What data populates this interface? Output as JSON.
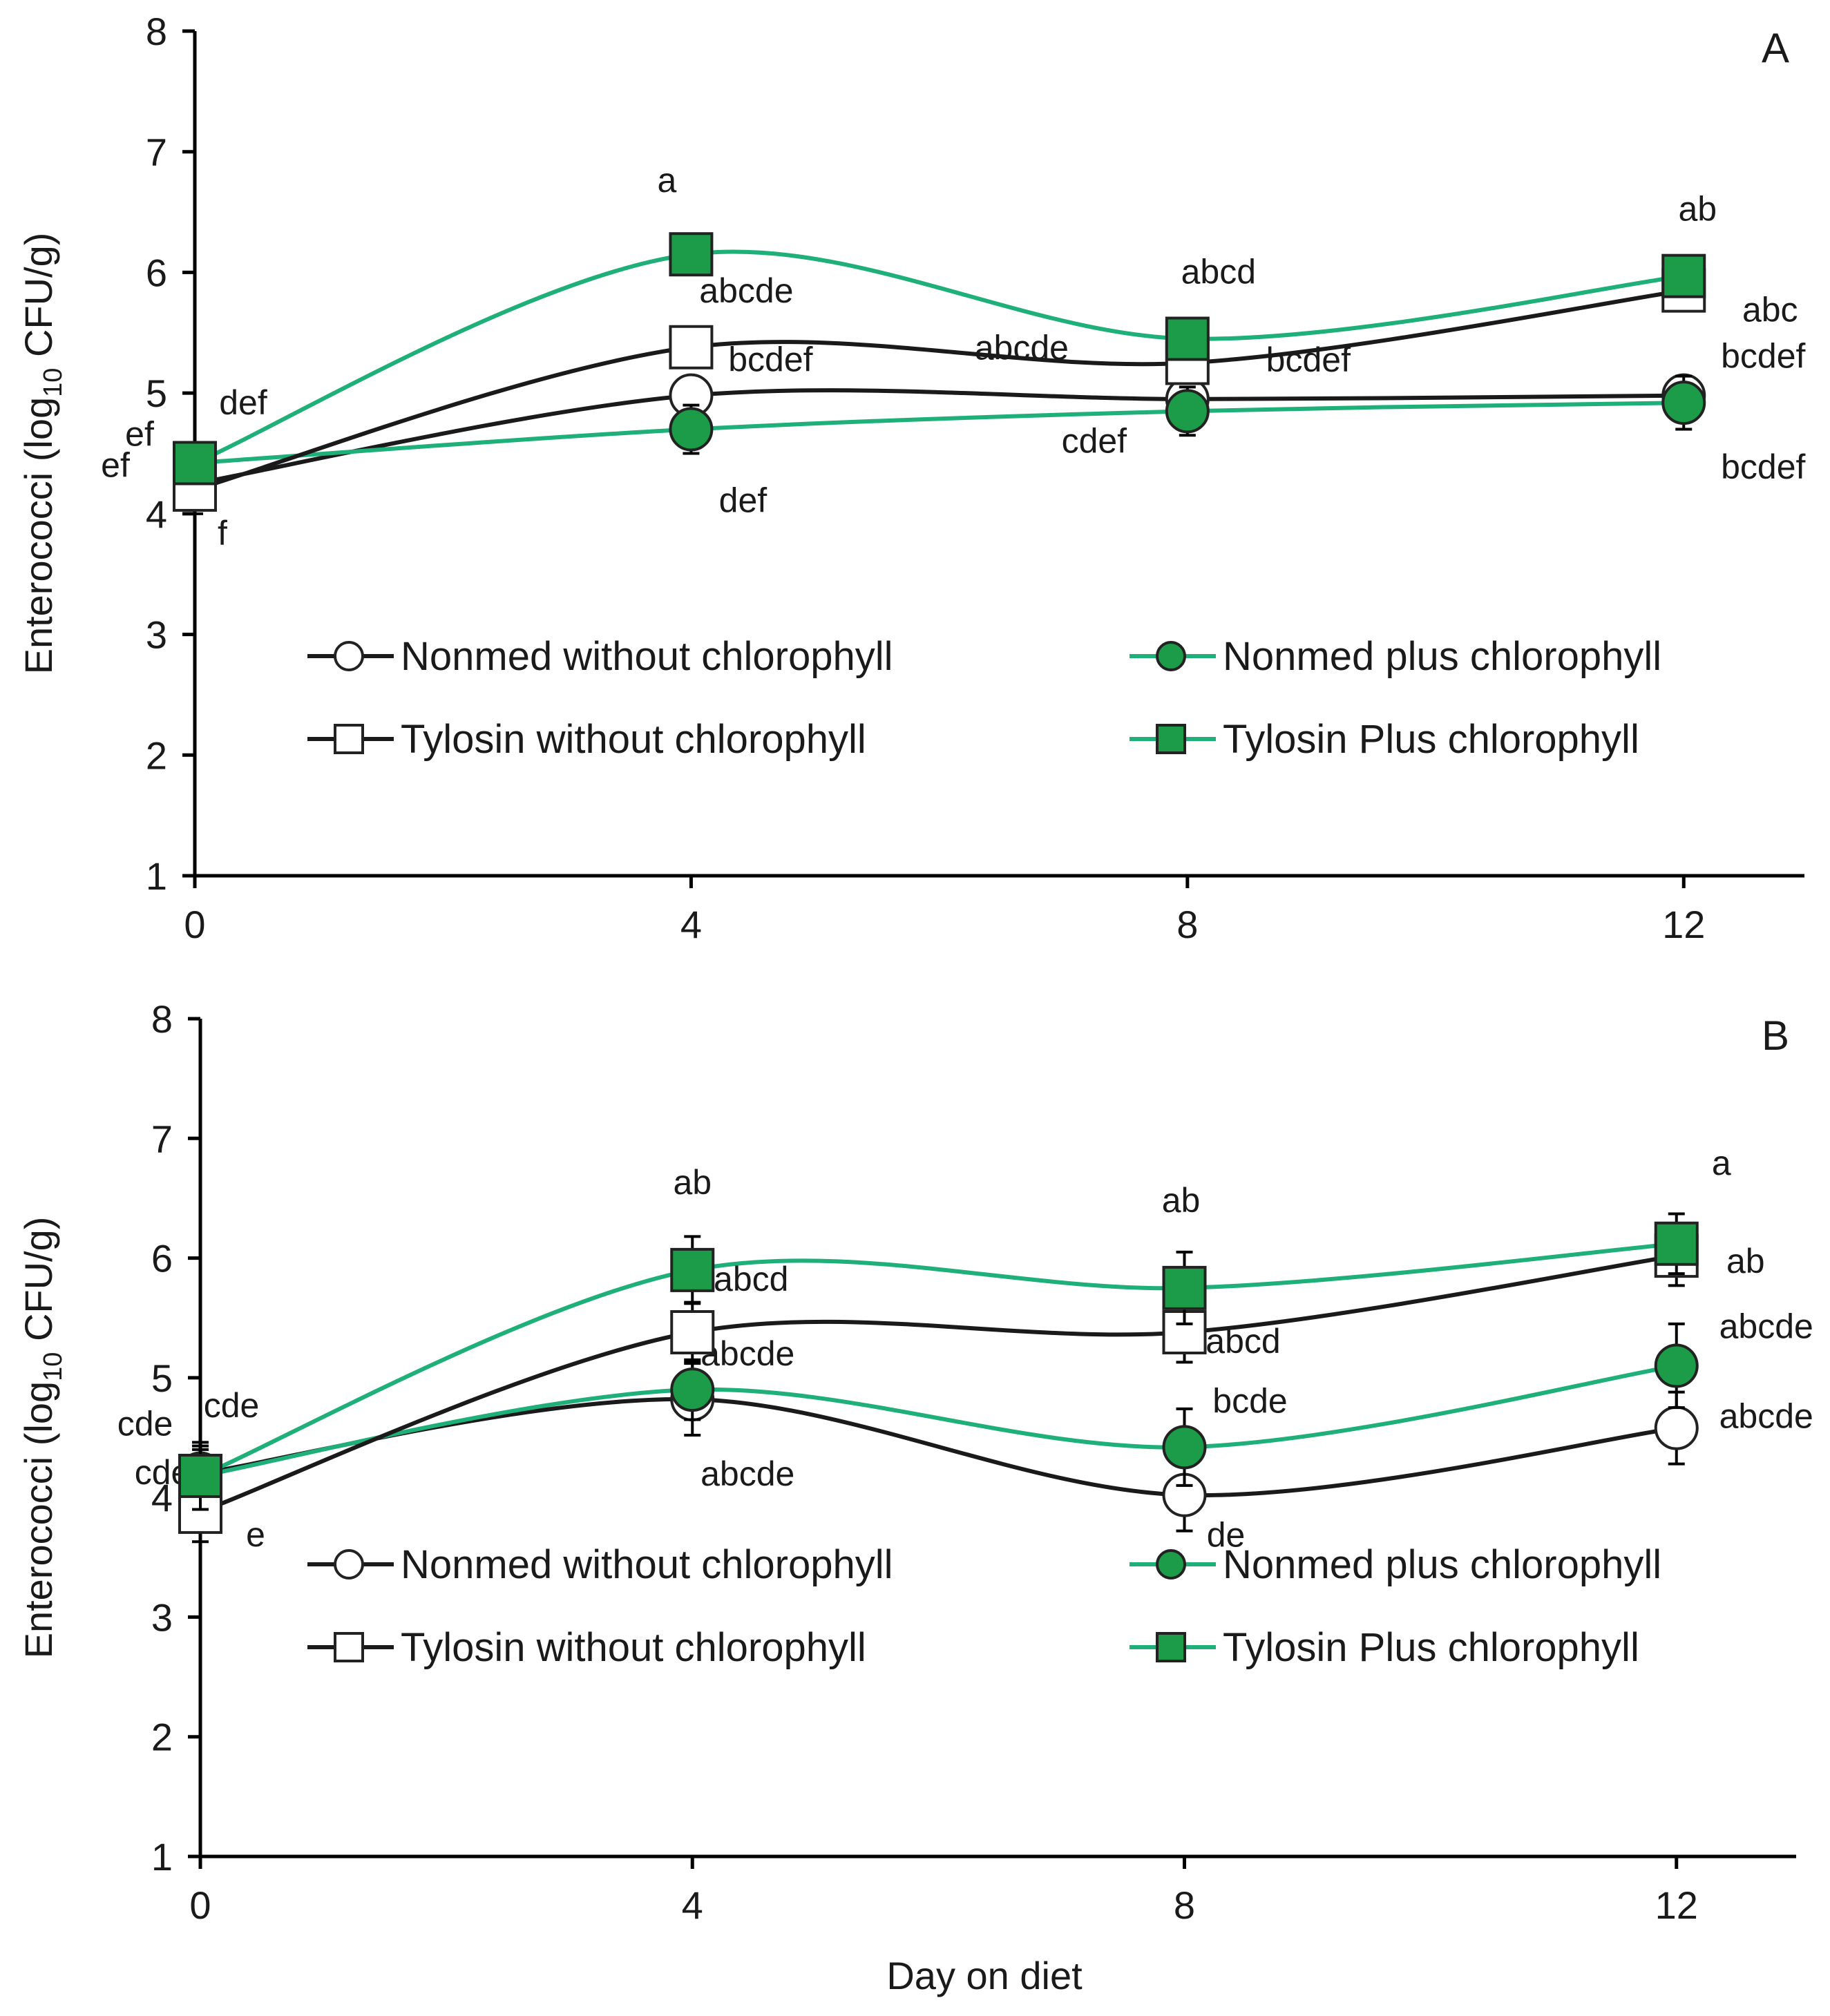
{
  "figure": {
    "xlabel": "Day on diet",
    "series_colors": {
      "Nonmed without chlorophyll": "#1a1a1a",
      "Nonmed plus chlorophyll": "#1fb07a",
      "Tylosin without chlorophyll": "#1a1a1a",
      "Tylosin Plus chlorophyll": "#1fb07a"
    },
    "marker_fill": {
      "Nonmed without chlorophyll": "#ffffff",
      "Nonmed plus chlorophyll": "#1c9c48",
      "Tylosin without chlorophyll": "#ffffff",
      "Tylosin Plus chlorophyll": "#1c9c48"
    }
  },
  "chart_data": [
    {
      "type": "line",
      "panel": "A",
      "title": "",
      "xlabel": "",
      "ylabel": "Enterococci (log10 CFU/g)",
      "ylabel_parts": [
        "Enterococci (log",
        "10",
        " CFU/g)"
      ],
      "x": [
        0,
        4,
        8,
        12
      ],
      "x_ticks": [
        "0",
        "4",
        "8",
        "12"
      ],
      "ylim": [
        1,
        8
      ],
      "y_ticks": [
        "1",
        "2",
        "3",
        "4",
        "5",
        "6",
        "7",
        "8"
      ],
      "grid": false,
      "legend_position": "center",
      "series": [
        {
          "name": "Nonmed without chlorophyll",
          "marker": "circle",
          "values": [
            4.25,
            4.98,
            4.95,
            4.98
          ],
          "errors": [
            0.15,
            0.15,
            0.12,
            0.15
          ],
          "labels": [
            "def",
            "bcdef",
            "bcdef",
            "bcdef"
          ]
        },
        {
          "name": "Nonmed plus chlorophyll",
          "marker": "circle",
          "values": [
            4.42,
            4.7,
            4.85,
            4.92
          ],
          "errors": [
            0.15,
            0.2,
            0.2,
            0.22
          ],
          "labels": [
            "ef",
            "def",
            "cdef",
            "bcdef"
          ]
        },
        {
          "name": "Tylosin without chlorophyll",
          "marker": "square",
          "values": [
            4.2,
            5.38,
            5.25,
            5.85
          ],
          "errors": [
            0.2,
            0.15,
            0.15,
            0.15
          ],
          "labels": [
            "f",
            "abcde",
            "abcde",
            "abc"
          ]
        },
        {
          "name": "Tylosin Plus chlorophyll",
          "marker": "square",
          "values": [
            4.42,
            6.15,
            5.45,
            5.97
          ],
          "errors": [
            0.15,
            0.15,
            0.15,
            0.15
          ],
          "labels": [
            "ef",
            "a",
            "abcd",
            "ab"
          ]
        }
      ]
    },
    {
      "type": "line",
      "panel": "B",
      "title": "",
      "xlabel": "Day on diet",
      "ylabel": "Enterococci (log10 CFU/g)",
      "ylabel_parts": [
        "Enterococci (log",
        "10",
        " CFU/g)"
      ],
      "x": [
        0,
        4,
        8,
        12
      ],
      "x_ticks": [
        "0",
        "4",
        "8",
        "12"
      ],
      "ylim": [
        1,
        8
      ],
      "y_ticks": [
        "1",
        "2",
        "3",
        "4",
        "5",
        "6",
        "7",
        "8"
      ],
      "grid": false,
      "legend_position": "center",
      "series": [
        {
          "name": "Nonmed without chlorophyll",
          "marker": "circle",
          "values": [
            4.2,
            4.82,
            4.02,
            4.58
          ],
          "errors": [
            0.2,
            0.3,
            0.3,
            0.3
          ],
          "labels": [
            "cde",
            "abcde",
            "de",
            "abcde"
          ]
        },
        {
          "name": "Nonmed plus chlorophyll",
          "marker": "circle",
          "values": [
            4.18,
            4.9,
            4.42,
            5.1
          ],
          "errors": [
            0.25,
            0.25,
            0.32,
            0.35
          ],
          "labels": [
            "cde",
            "abcde",
            "bcde",
            "abcde"
          ]
        },
        {
          "name": "Tylosin without chlorophyll",
          "marker": "square",
          "values": [
            3.88,
            5.38,
            5.38,
            6.02
          ],
          "errors": [
            0.25,
            0.25,
            0.25,
            0.25
          ],
          "labels": [
            "e",
            "abcd",
            "abcd",
            "ab"
          ]
        },
        {
          "name": "Tylosin Plus chlorophyll",
          "marker": "square",
          "values": [
            4.18,
            5.9,
            5.75,
            6.12
          ],
          "errors": [
            0.28,
            0.28,
            0.3,
            0.25
          ],
          "labels": [
            "cde",
            "ab",
            "ab",
            "a"
          ]
        }
      ]
    }
  ]
}
